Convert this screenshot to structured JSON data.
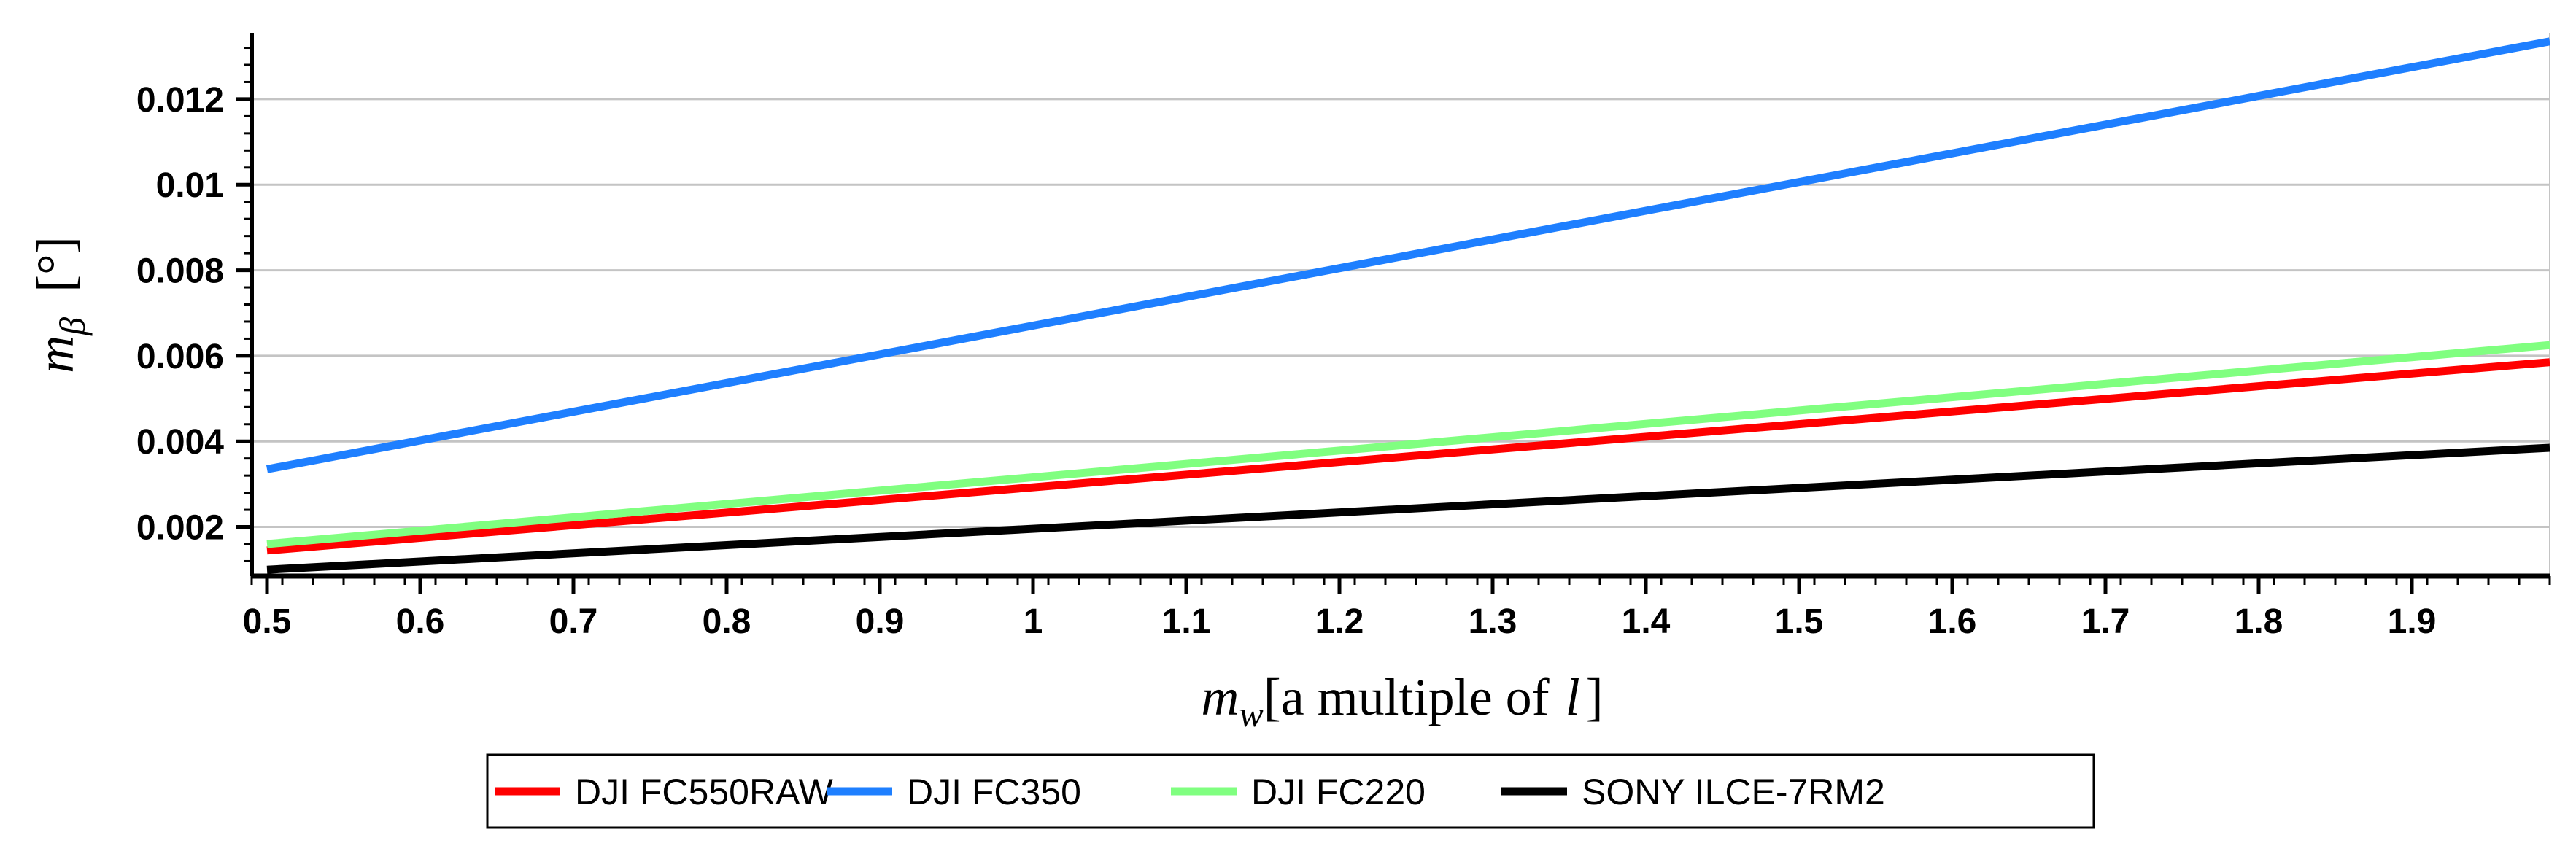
{
  "chart_data": {
    "type": "line",
    "title": "",
    "xlabel": {
      "var": "m",
      "sub": "w",
      "text": "[a multiple of",
      "unit": "l",
      "close": "]"
    },
    "ylabel": {
      "var": "m",
      "sub": "β",
      "unit": "[°]"
    },
    "xlim": [
      0.49,
      1.99
    ],
    "ylim": [
      0.00085,
      0.01355
    ],
    "x_ticks": [
      0.5,
      0.6,
      0.7,
      0.8,
      0.9,
      1,
      1.1,
      1.2,
      1.3,
      1.4,
      1.5,
      1.6,
      1.7,
      1.8,
      1.9
    ],
    "x_tick_labels": [
      "0.5",
      "0.6",
      "0.7",
      "0.8",
      "0.9",
      "1",
      "1.1",
      "1.2",
      "1.3",
      "1.4",
      "1.5",
      "1.6",
      "1.7",
      "1.8",
      "1.9"
    ],
    "y_ticks": [
      0.002,
      0.004,
      0.006,
      0.008,
      0.01,
      0.012
    ],
    "y_tick_labels": [
      "0.002",
      "0.004",
      "0.006",
      "0.008",
      "0.01",
      "0.012"
    ],
    "grid": "horizontal",
    "legend_position": "bottom-center",
    "series": [
      {
        "name": "DJI FC550RAW",
        "color": "#ff0000",
        "x": [
          0.5,
          1.99
        ],
        "y": [
          0.00145,
          0.00585
        ]
      },
      {
        "name": "DJI FC350",
        "color": "#1e7fff",
        "x": [
          0.5,
          1.99
        ],
        "y": [
          0.00335,
          0.01335
        ]
      },
      {
        "name": "DJI FC220",
        "color": "#80ff80",
        "x": [
          0.5,
          1.99
        ],
        "y": [
          0.0016,
          0.00625
        ]
      },
      {
        "name": "SONY ILCE-7RM2",
        "color": "#000000",
        "x": [
          0.5,
          1.99
        ],
        "y": [
          0.001,
          0.00385
        ]
      }
    ]
  }
}
